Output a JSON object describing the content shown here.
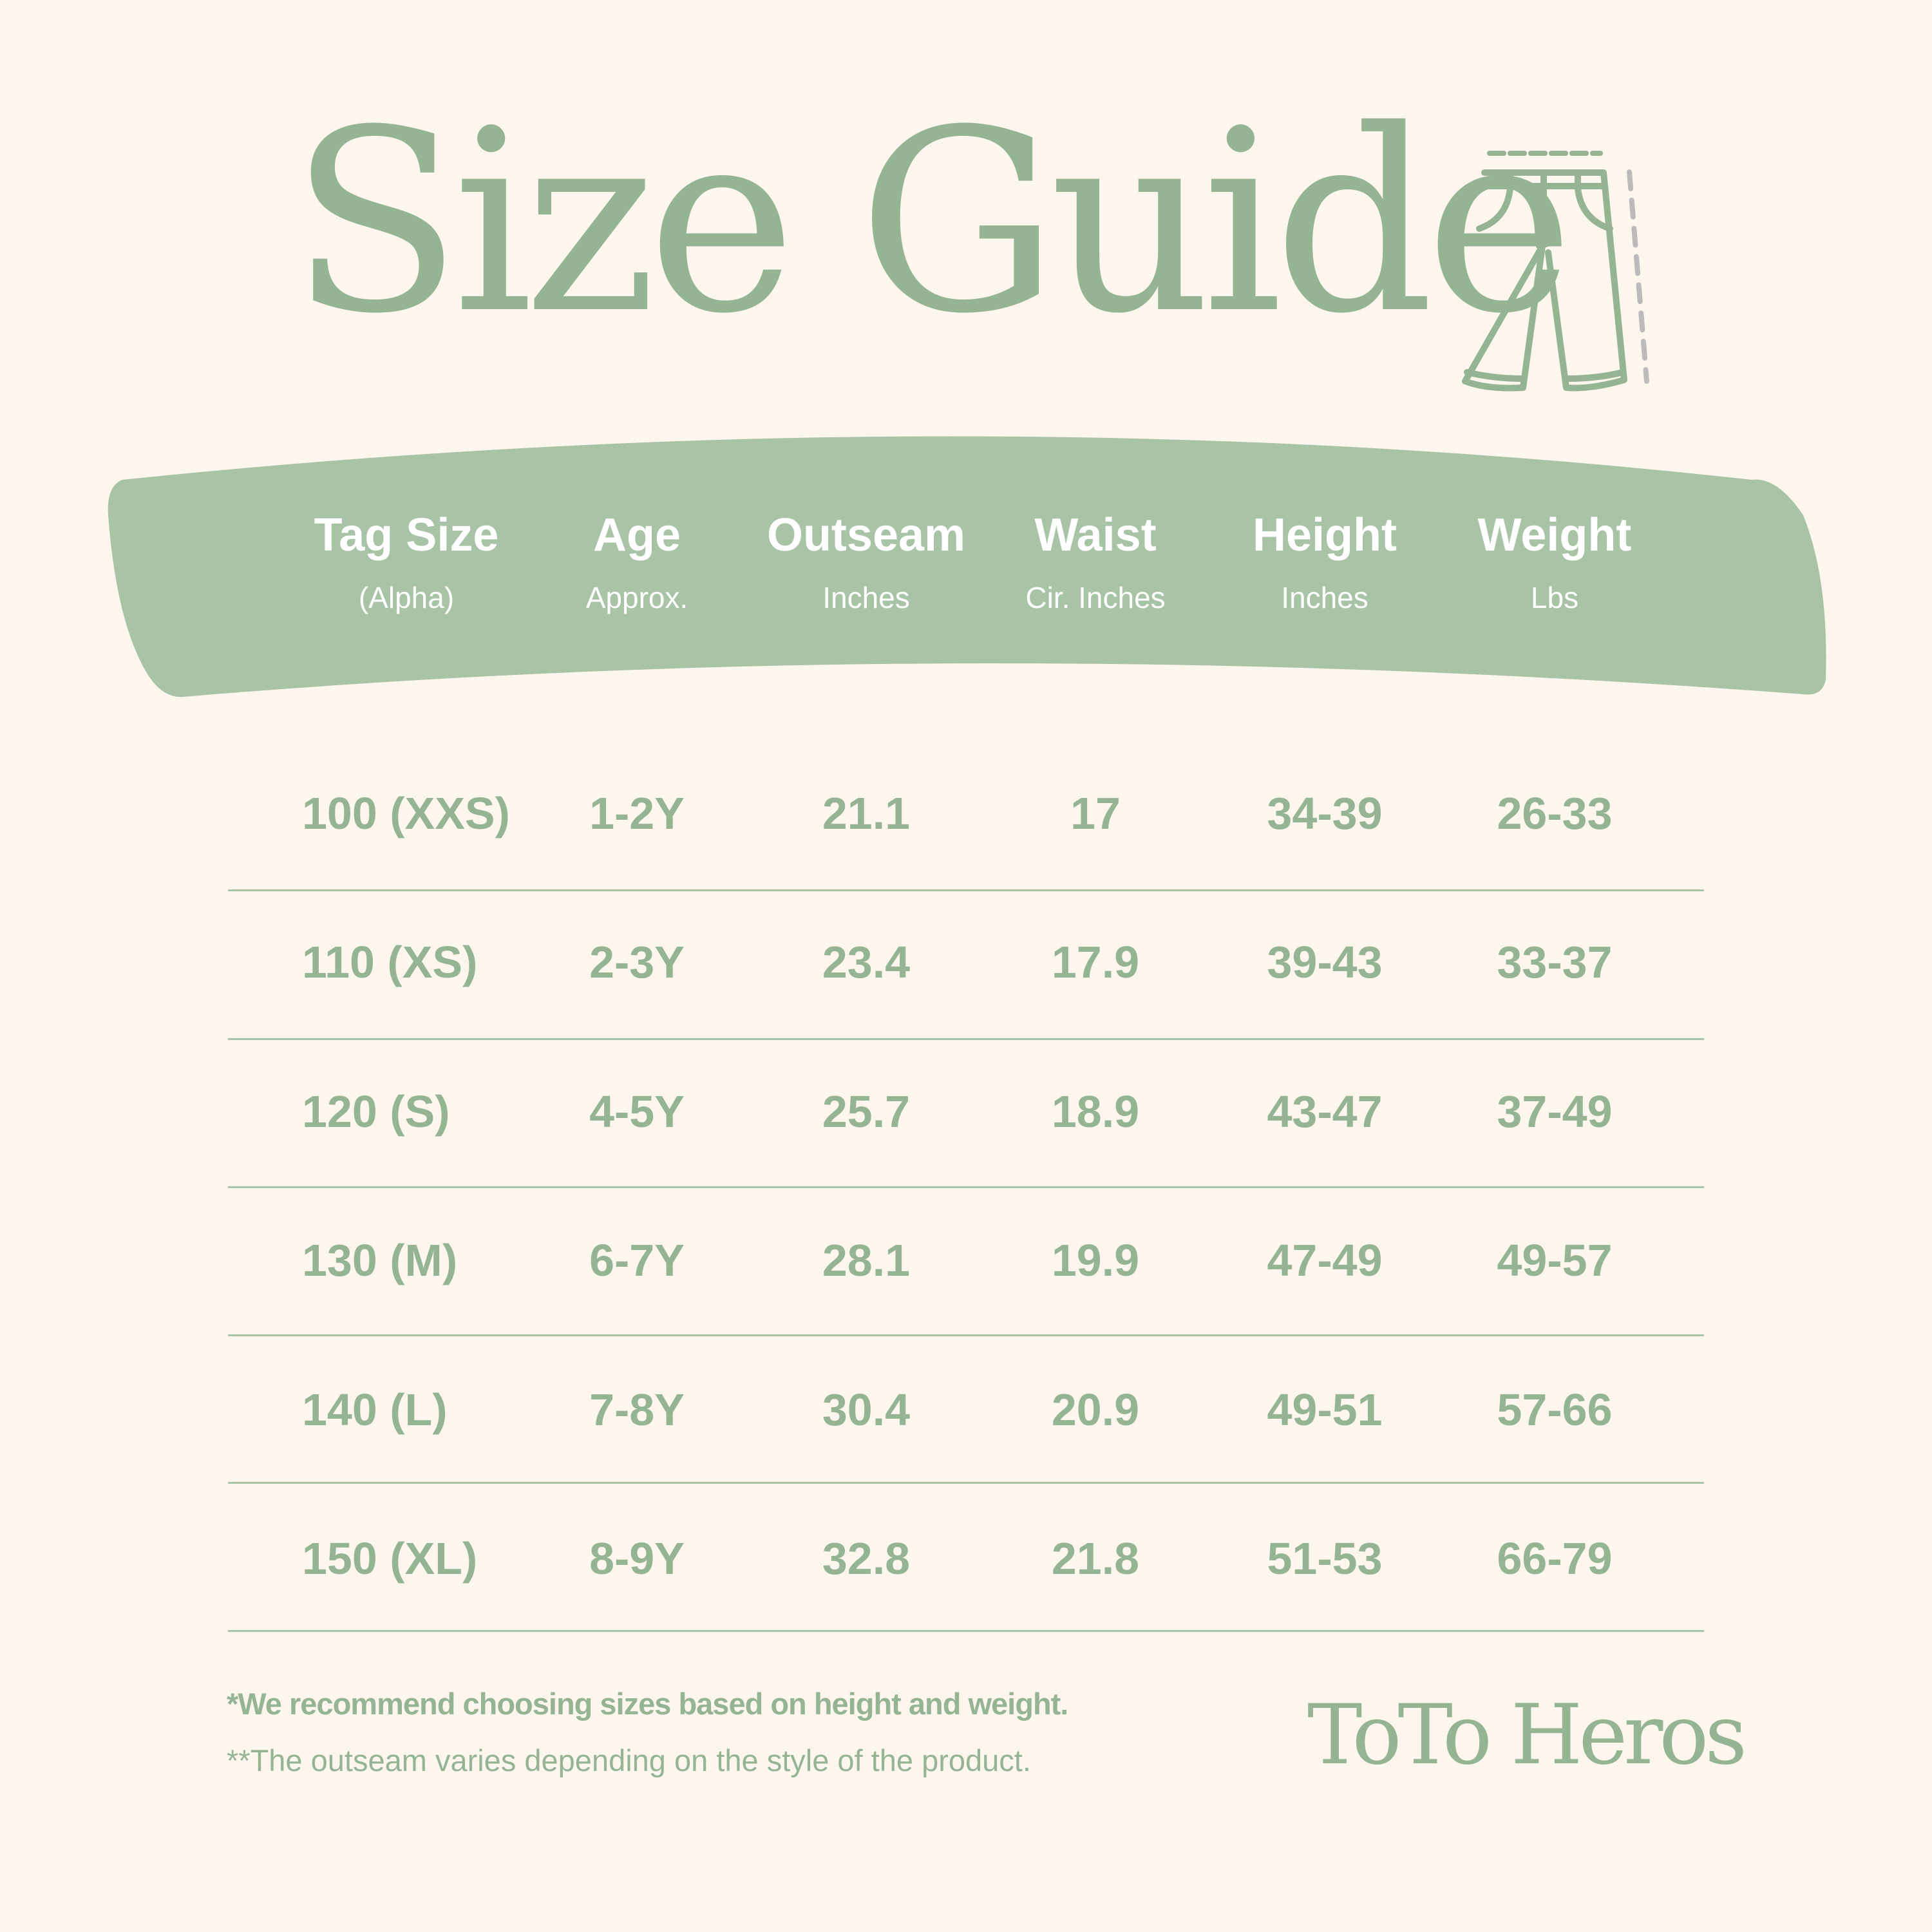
{
  "title": "Size Guide",
  "icon": "pants-icon",
  "colors": {
    "background": "#fcf6ec",
    "accent": "#a8c3a6",
    "text": "#95b494",
    "dash_gray": "#bdbabb"
  },
  "columns": [
    {
      "label": "Tag Size",
      "sub": "(Alpha)"
    },
    {
      "label": "Age",
      "sub": "Approx."
    },
    {
      "label": "Outseam",
      "sub": "Inches"
    },
    {
      "label": "Waist",
      "sub": "Cir. Inches"
    },
    {
      "label": "Height",
      "sub": "Inches"
    },
    {
      "label": "Weight",
      "sub": "Lbs"
    }
  ],
  "rows": [
    [
      "100 (XXS)",
      "1-2Y",
      "21.1",
      "17",
      "34-39",
      "26-33"
    ],
    [
      "110 (XS)",
      "2-3Y",
      "23.4",
      "17.9",
      "39-43",
      "33-37"
    ],
    [
      "120 (S)",
      "4-5Y",
      "25.7",
      "18.9",
      "43-47",
      "37-49"
    ],
    [
      "130 (M)",
      "6-7Y",
      "28.1",
      "19.9",
      "47-49",
      "49-57"
    ],
    [
      "140 (L)",
      "7-8Y",
      "30.4",
      "20.9",
      "49-51",
      "57-66"
    ],
    [
      "150 (XL)",
      "8-9Y",
      "32.8",
      "21.8",
      "51-53",
      "66-79"
    ]
  ],
  "notes": [
    "*We recommend choosing sizes based on height and weight.",
    "**The outseam varies depending on the style of the product."
  ],
  "brand": "ToTo Heros"
}
